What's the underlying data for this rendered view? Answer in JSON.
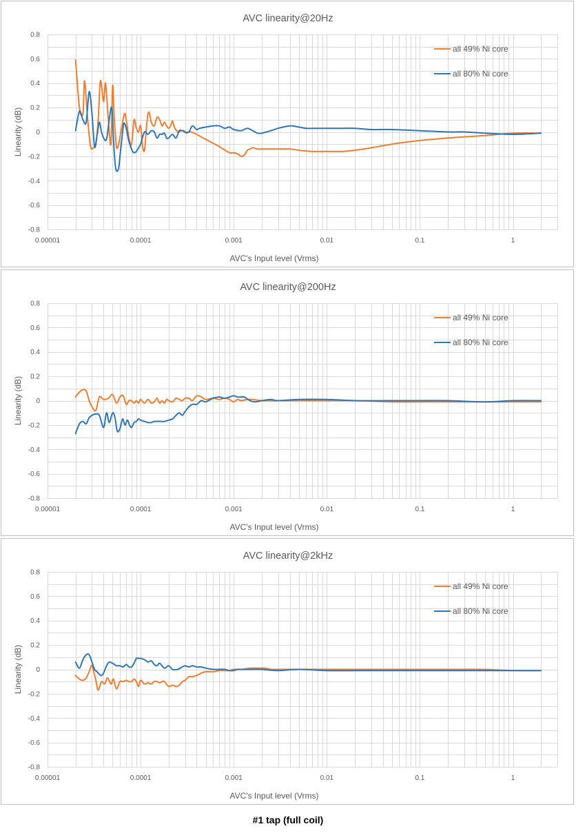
{
  "caption": "#1 tap (full coil)",
  "colors": {
    "series_49": "#ED7D31",
    "series_80": "#2E75B6",
    "grid": "#D9D9D9",
    "text": "#595959"
  },
  "chart_data": [
    {
      "type": "line",
      "title": "AVC linearity@20Hz",
      "xlabel": "AVC's Input level (Vrms)",
      "ylabel": "Linearity (dB)",
      "xscale": "log",
      "xlim": [
        1e-05,
        3
      ],
      "ylim": [
        -0.8,
        0.8
      ],
      "xticks": [
        "0.00001",
        "0.0001",
        "0.001",
        "0.01",
        "0.1",
        "1"
      ],
      "yticks": [
        "0.8",
        "0.6",
        "0.4",
        "0.2",
        "0",
        "-0.2",
        "-0.4",
        "-0.6",
        "-0.8"
      ],
      "grid": true,
      "legend_position": "top-right",
      "series": [
        {
          "name": "all 49% Ni core",
          "color": "#ED7D31",
          "x": [
            2e-05,
            2.2e-05,
            2.4e-05,
            2.5e-05,
            2.7e-05,
            2.9e-05,
            3.1e-05,
            3.3e-05,
            3.5e-05,
            3.7e-05,
            4e-05,
            4.2e-05,
            4.5e-05,
            4.8e-05,
            5e-05,
            5.2e-05,
            5.5e-05,
            5.8e-05,
            6.2e-05,
            6.7e-05,
            7e-05,
            7.5e-05,
            8e-05,
            8.5e-05,
            9e-05,
            9.5e-05,
            0.0001,
            0.000105,
            0.00011,
            0.000115,
            0.00012,
            0.000125,
            0.00013,
            0.00014,
            0.00015,
            0.00016,
            0.00017,
            0.00018,
            0.00019,
            0.0002,
            0.00021,
            0.00022,
            0.00023,
            0.00025,
            0.00026,
            0.00027,
            0.00029,
            0.00031,
            0.00033,
            0.00035,
            0.0004,
            0.0005,
            0.0007,
            0.0009,
            0.001,
            0.0011,
            0.0012,
            0.0013,
            0.0014,
            0.0015,
            0.0016,
            0.0018,
            0.002,
            0.0025,
            0.003,
            0.004,
            0.005,
            0.007,
            0.01,
            0.015,
            0.02,
            0.03,
            0.05,
            0.1,
            0.2,
            0.3,
            0.5,
            1,
            2
          ],
          "y": [
            0.59,
            0.2,
            0.15,
            0.42,
            0.1,
            -0.12,
            -0.13,
            -0.1,
            0.1,
            0.42,
            0.25,
            0.4,
            0.1,
            -0.1,
            0.38,
            0.12,
            -0.12,
            -0.1,
            0.02,
            0.15,
            0.1,
            -0.05,
            -0.1,
            0.1,
            0.03,
            0.0,
            0.05,
            -0.12,
            -0.15,
            0.02,
            0.15,
            0.15,
            0.08,
            0.05,
            0.12,
            0.1,
            0.05,
            0.08,
            0.05,
            0.03,
            0.05,
            0.09,
            0.04,
            0.0,
            0.0,
            0.01,
            0.01,
            -0.01,
            0.0,
            0.0,
            -0.02,
            -0.06,
            -0.12,
            -0.17,
            -0.17,
            -0.18,
            -0.2,
            -0.19,
            -0.15,
            -0.14,
            -0.13,
            -0.14,
            -0.14,
            -0.14,
            -0.14,
            -0.14,
            -0.15,
            -0.16,
            -0.16,
            -0.16,
            -0.15,
            -0.13,
            -0.1,
            -0.07,
            -0.05,
            -0.04,
            -0.03,
            -0.01,
            -0.01
          ]
        },
        {
          "name": "all 80% Ni core",
          "color": "#2E75B6",
          "x": [
            2e-05,
            2.2e-05,
            2.4e-05,
            2.6e-05,
            2.8e-05,
            3e-05,
            3.2e-05,
            3.4e-05,
            3.6e-05,
            3.8e-05,
            4e-05,
            4.3e-05,
            4.6e-05,
            4.9e-05,
            5.1e-05,
            5.3e-05,
            5.5e-05,
            5.8e-05,
            6e-05,
            6.3e-05,
            6.6e-05,
            7e-05,
            7.4e-05,
            7.8e-05,
            8.2e-05,
            8.6e-05,
            9e-05,
            9.5e-05,
            0.0001,
            0.00011,
            0.00012,
            0.00013,
            0.00014,
            0.00015,
            0.00016,
            0.00017,
            0.00018,
            0.00019,
            0.0002,
            0.00022,
            0.00024,
            0.00026,
            0.00028,
            0.0003,
            0.00033,
            0.00036,
            0.0004,
            0.00043,
            0.0005,
            0.0006,
            0.0007,
            0.0008,
            0.0009,
            0.001,
            0.0012,
            0.0014,
            0.0016,
            0.0018,
            0.002,
            0.0025,
            0.003,
            0.004,
            0.005,
            0.006,
            0.008,
            0.01,
            0.012,
            0.015,
            0.02,
            0.03,
            0.05,
            0.1,
            0.2,
            0.3,
            0.5,
            1,
            2
          ],
          "y": [
            0.01,
            0.17,
            0.1,
            0.08,
            0.33,
            0.15,
            -0.12,
            -0.03,
            0.08,
            0.0,
            -0.05,
            -0.06,
            0.1,
            0.2,
            -0.05,
            -0.25,
            -0.32,
            -0.3,
            -0.2,
            -0.05,
            0.07,
            0.03,
            -0.06,
            -0.12,
            -0.16,
            -0.17,
            -0.16,
            -0.13,
            -0.1,
            0.0,
            -0.02,
            0.01,
            0.0,
            -0.05,
            -0.02,
            -0.02,
            -0.01,
            -0.05,
            -0.05,
            -0.02,
            -0.05,
            0.01,
            0.01,
            0.0,
            0.0,
            0.05,
            0.02,
            0.03,
            0.04,
            0.05,
            0.05,
            0.03,
            0.04,
            0.02,
            0.01,
            0.03,
            0.01,
            -0.01,
            -0.01,
            0.01,
            0.03,
            0.05,
            0.04,
            0.03,
            0.03,
            0.03,
            0.03,
            0.03,
            0.03,
            0.02,
            0.02,
            0.01,
            0.0,
            0.0,
            -0.01,
            -0.02,
            -0.01
          ]
        }
      ]
    },
    {
      "type": "line",
      "title": "AVC linearity@200Hz",
      "xlabel": "AVC's Input level (Vrms)",
      "ylabel": "Linearity (dB)",
      "xscale": "log",
      "xlim": [
        1e-05,
        3
      ],
      "ylim": [
        -0.8,
        0.8
      ],
      "xticks": [
        "0.00001",
        "0.0001",
        "0.001",
        "0.01",
        "0.1",
        "1"
      ],
      "yticks": [
        "0.8",
        "0.6",
        "0.4",
        "0.2",
        "0",
        "-0.2",
        "-0.4",
        "-0.6",
        "-0.8"
      ],
      "grid": true,
      "legend_position": "top-right",
      "series": [
        {
          "name": "all 49% Ni core",
          "color": "#ED7D31",
          "x": [
            2e-05,
            2.2e-05,
            2.4e-05,
            2.6e-05,
            2.8e-05,
            3e-05,
            3.3e-05,
            3.6e-05,
            4e-05,
            4.5e-05,
            5e-05,
            5.5e-05,
            6e-05,
            6.5e-05,
            7e-05,
            7.5e-05,
            8e-05,
            8.5e-05,
            9e-05,
            9.5e-05,
            0.0001,
            0.00011,
            0.00012,
            0.00013,
            0.00014,
            0.00015,
            0.00016,
            0.00017,
            0.00018,
            0.00019,
            0.0002,
            0.00022,
            0.00024,
            0.00026,
            0.00028,
            0.0003,
            0.00033,
            0.00036,
            0.0004,
            0.00045,
            0.0005,
            0.0006,
            0.0007,
            0.0008,
            0.0009,
            0.001,
            0.0011,
            0.0012,
            0.0014,
            0.0016,
            0.002,
            0.003,
            0.005,
            0.01,
            0.02,
            0.05,
            0.1,
            0.2,
            0.5,
            1,
            2
          ],
          "y": [
            0.03,
            0.07,
            0.09,
            0.08,
            0.0,
            -0.05,
            -0.08,
            0.03,
            0.01,
            0.02,
            0.05,
            -0.02,
            0.03,
            0.04,
            -0.03,
            0.0,
            0.0,
            -0.02,
            0.0,
            -0.02,
            0.01,
            -0.02,
            0.01,
            -0.02,
            -0.01,
            0.02,
            -0.02,
            0.0,
            -0.02,
            0.01,
            0.0,
            -0.01,
            0.02,
            0.01,
            0.0,
            0.02,
            0.02,
            0.0,
            0.04,
            0.03,
            0.01,
            0.02,
            0.01,
            0.02,
            0.01,
            -0.01,
            0.01,
            0.0,
            0.01,
            0.01,
            0.0,
            0.0,
            0.0,
            0.0,
            0.0,
            -0.01,
            -0.01,
            -0.01,
            -0.01,
            -0.01,
            -0.01
          ]
        },
        {
          "name": "all 80% Ni core",
          "color": "#2E75B6",
          "x": [
            2e-05,
            2.2e-05,
            2.4e-05,
            2.6e-05,
            2.8e-05,
            3e-05,
            3.3e-05,
            3.6e-05,
            4e-05,
            4.3e-05,
            4.6e-05,
            5e-05,
            5.3e-05,
            5.6e-05,
            6e-05,
            6.4e-05,
            6.8e-05,
            7.2e-05,
            7.6e-05,
            8e-05,
            8.5e-05,
            9e-05,
            9.5e-05,
            0.0001,
            0.00011,
            0.00012,
            0.00013,
            0.00014,
            0.00016,
            0.00018,
            0.0002,
            0.00022,
            0.00024,
            0.00026,
            0.00028,
            0.0003,
            0.00033,
            0.00036,
            0.0004,
            0.00045,
            0.0005,
            0.0006,
            0.0007,
            0.0008,
            0.0009,
            0.001,
            0.0011,
            0.0012,
            0.0013,
            0.0015,
            0.0017,
            0.002,
            0.0025,
            0.003,
            0.005,
            0.01,
            0.02,
            0.05,
            0.1,
            0.2,
            0.5,
            1,
            2
          ],
          "y": [
            -0.27,
            -0.19,
            -0.17,
            -0.19,
            -0.14,
            -0.12,
            -0.11,
            -0.12,
            -0.22,
            -0.1,
            -0.18,
            -0.1,
            -0.14,
            -0.25,
            -0.23,
            -0.15,
            -0.2,
            -0.16,
            -0.2,
            -0.22,
            -0.18,
            -0.17,
            -0.15,
            -0.16,
            -0.17,
            -0.18,
            -0.18,
            -0.17,
            -0.17,
            -0.17,
            -0.16,
            -0.15,
            -0.12,
            -0.1,
            -0.12,
            -0.09,
            -0.05,
            -0.03,
            -0.03,
            0.0,
            -0.01,
            0.02,
            0.03,
            0.02,
            0.03,
            0.04,
            0.03,
            0.03,
            0.03,
            0.0,
            -0.01,
            0.0,
            0.01,
            0.0,
            0.01,
            0.01,
            0.0,
            0.0,
            0.0,
            0.0,
            -0.01,
            0.0,
            0.0
          ]
        }
      ]
    },
    {
      "type": "line",
      "title": "AVC linearity@2kHz",
      "xlabel": "AVC's Input level (Vrms)",
      "ylabel": "Linearity (dB)",
      "xscale": "log",
      "xlim": [
        1e-05,
        3
      ],
      "ylim": [
        -0.8,
        0.8
      ],
      "xticks": [
        "0.00001",
        "0.0001",
        "0.001",
        "0.01",
        "0.1",
        "1"
      ],
      "yticks": [
        "0.8",
        "0.6",
        "0.4",
        "0.2",
        "0",
        "-0.2",
        "-0.4",
        "-0.6",
        "-0.8"
      ],
      "grid": true,
      "legend_position": "top-right",
      "series": [
        {
          "name": "all 49% Ni core",
          "color": "#ED7D31",
          "x": [
            2e-05,
            2.2e-05,
            2.4e-05,
            2.6e-05,
            2.8e-05,
            3e-05,
            3.3e-05,
            3.5e-05,
            3.8e-05,
            4.1e-05,
            4.4e-05,
            4.8e-05,
            5.1e-05,
            5.5e-05,
            6e-05,
            6.5e-05,
            7e-05,
            7.5e-05,
            8e-05,
            8.5e-05,
            9e-05,
            9.5e-05,
            0.0001,
            0.00011,
            0.00012,
            0.00013,
            0.00014,
            0.00015,
            0.00016,
            0.00017,
            0.00018,
            0.0002,
            0.00022,
            0.00024,
            0.00026,
            0.00028,
            0.0003,
            0.00033,
            0.00036,
            0.0004,
            0.00045,
            0.0005,
            0.0006,
            0.0007,
            0.0008,
            0.0009,
            0.001,
            0.0012,
            0.0015,
            0.0018,
            0.002,
            0.0022,
            0.0025,
            0.003,
            0.005,
            0.01,
            0.02,
            0.05,
            0.1,
            0.2,
            0.5,
            1,
            2
          ],
          "y": [
            -0.05,
            -0.08,
            -0.09,
            -0.07,
            -0.02,
            0.03,
            -0.09,
            -0.17,
            -0.1,
            -0.12,
            -0.07,
            -0.12,
            -0.08,
            -0.16,
            -0.1,
            -0.1,
            -0.09,
            -0.1,
            -0.1,
            -0.08,
            -0.1,
            -0.14,
            -0.09,
            -0.12,
            -0.11,
            -0.12,
            -0.1,
            -0.1,
            -0.11,
            -0.1,
            -0.1,
            -0.14,
            -0.13,
            -0.14,
            -0.13,
            -0.1,
            -0.09,
            -0.06,
            -0.06,
            -0.05,
            -0.03,
            -0.02,
            -0.02,
            -0.01,
            -0.01,
            -0.01,
            0.0,
            0.0,
            0.01,
            0.01,
            0.01,
            0.01,
            0.0,
            0.0,
            0.0,
            0.0,
            0.0,
            0.0,
            0.0,
            0.0,
            0.0,
            -0.01,
            -0.01
          ]
        },
        {
          "name": "all 80% Ni core",
          "color": "#2E75B6",
          "x": [
            2e-05,
            2.2e-05,
            2.4e-05,
            2.6e-05,
            2.8e-05,
            3e-05,
            3.2e-05,
            3.4e-05,
            3.6e-05,
            3.8e-05,
            4e-05,
            4.3e-05,
            4.6e-05,
            5e-05,
            5.5e-05,
            6e-05,
            6.5e-05,
            7e-05,
            7.5e-05,
            8e-05,
            8.5e-05,
            9e-05,
            9.5e-05,
            0.0001,
            0.00011,
            0.00012,
            0.00013,
            0.00014,
            0.00015,
            0.00016,
            0.00018,
            0.0002,
            0.00022,
            0.00025,
            0.00028,
            0.0003,
            0.00033,
            0.00036,
            0.0004,
            0.00045,
            0.0005,
            0.0006,
            0.0007,
            0.0008,
            0.0009,
            0.001,
            0.0011,
            0.0012,
            0.0015,
            0.002,
            0.003,
            0.005,
            0.01,
            0.02,
            0.05,
            0.1,
            0.2,
            0.5,
            1,
            2
          ],
          "y": [
            0.06,
            0.01,
            0.08,
            0.12,
            0.12,
            0.06,
            0.0,
            -0.02,
            -0.04,
            -0.05,
            -0.03,
            0.03,
            0.06,
            0.05,
            0.03,
            0.03,
            0.02,
            0.04,
            0.02,
            0.02,
            0.05,
            0.09,
            0.09,
            0.09,
            0.08,
            0.06,
            0.07,
            0.04,
            0.03,
            0.05,
            0.01,
            0.03,
            0.0,
            0.0,
            0.02,
            0.03,
            0.02,
            0.03,
            0.02,
            0.02,
            0.01,
            0.0,
            0.0,
            0.0,
            -0.01,
            -0.01,
            0.0,
            0.0,
            0.0,
            0.0,
            -0.01,
            0.0,
            -0.01,
            -0.01,
            -0.01,
            -0.01,
            -0.01,
            -0.01,
            -0.01,
            -0.01
          ]
        }
      ]
    }
  ]
}
